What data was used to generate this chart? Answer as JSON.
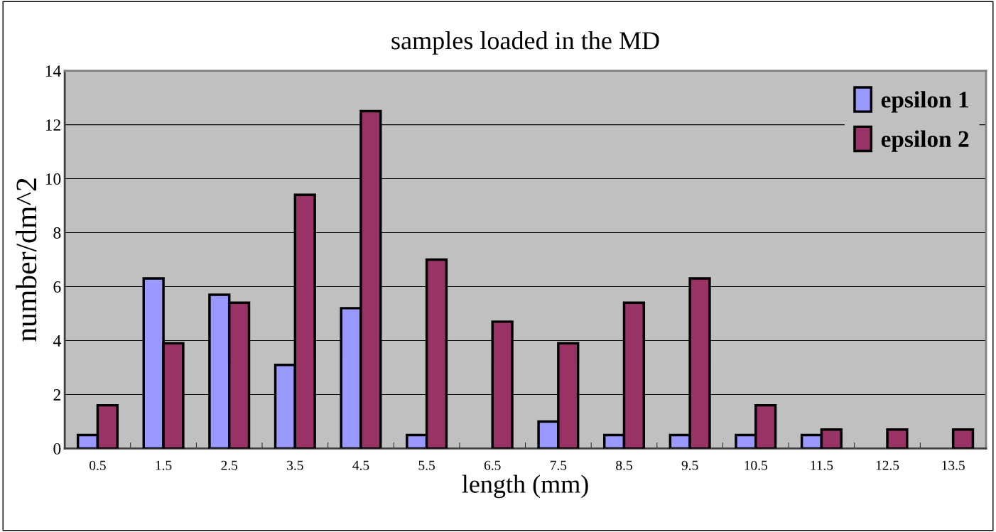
{
  "chart_data": {
    "type": "bar",
    "title": "samples loaded in the MD",
    "xlabel": "length (mm)",
    "ylabel": "number/dm^2",
    "categories": [
      "0.5",
      "1.5",
      "2.5",
      "3.5",
      "4.5",
      "5.5",
      "6.5",
      "7.5",
      "8.5",
      "9.5",
      "10.5",
      "11.5",
      "12.5",
      "13.5"
    ],
    "series": [
      {
        "name": "epsilon 1",
        "color": "#9999ff",
        "values": [
          0.5,
          6.3,
          5.7,
          3.1,
          5.2,
          0.5,
          null,
          1.0,
          0.5,
          0.5,
          0.5,
          0.5,
          null,
          null
        ]
      },
      {
        "name": "epsilon 2",
        "color": "#993366",
        "values": [
          1.6,
          3.9,
          5.4,
          9.4,
          12.5,
          7.0,
          4.7,
          3.9,
          5.4,
          6.3,
          1.6,
          0.7,
          0.7,
          0.7
        ]
      }
    ],
    "ylim": [
      0,
      14
    ],
    "yticks": [
      0,
      2,
      4,
      6,
      8,
      10,
      12,
      14
    ],
    "grid": "y",
    "legend": "top right"
  }
}
